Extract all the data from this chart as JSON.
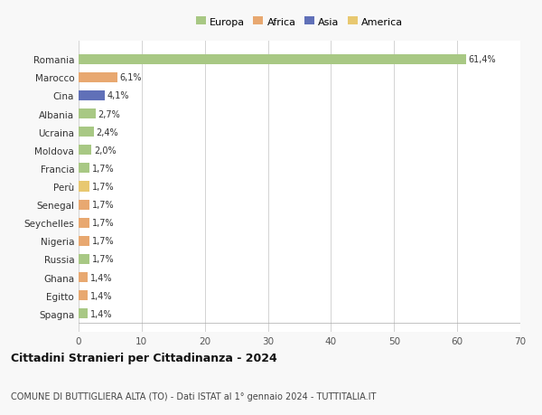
{
  "countries": [
    "Romania",
    "Marocco",
    "Cina",
    "Albania",
    "Ucraina",
    "Moldova",
    "Francia",
    "Perù",
    "Senegal",
    "Seychelles",
    "Nigeria",
    "Russia",
    "Ghana",
    "Egitto",
    "Spagna"
  ],
  "values": [
    61.4,
    6.1,
    4.1,
    2.7,
    2.4,
    2.0,
    1.7,
    1.7,
    1.7,
    1.7,
    1.7,
    1.7,
    1.4,
    1.4,
    1.4
  ],
  "labels": [
    "61,4%",
    "6,1%",
    "4,1%",
    "2,7%",
    "2,4%",
    "2,0%",
    "1,7%",
    "1,7%",
    "1,7%",
    "1,7%",
    "1,7%",
    "1,7%",
    "1,4%",
    "1,4%",
    "1,4%"
  ],
  "colors": [
    "#a8c884",
    "#e8a870",
    "#6070b8",
    "#a8c884",
    "#a8c884",
    "#a8c884",
    "#a8c884",
    "#e8c870",
    "#e8a870",
    "#e8a870",
    "#e8a870",
    "#a8c884",
    "#e8a870",
    "#e8a870",
    "#a8c884"
  ],
  "legend_labels": [
    "Europa",
    "Africa",
    "Asia",
    "America"
  ],
  "legend_colors": [
    "#a8c884",
    "#e8a870",
    "#6070b8",
    "#e8c870"
  ],
  "title": "Cittadini Stranieri per Cittadinanza - 2024",
  "subtitle": "COMUNE DI BUTTIGLIERA ALTA (TO) - Dati ISTAT al 1° gennaio 2024 - TUTTITALIA.IT",
  "xlim": [
    0,
    70
  ],
  "xticks": [
    0,
    10,
    20,
    30,
    40,
    50,
    60,
    70
  ],
  "bg_color": "#f8f8f8",
  "plot_bg_color": "#ffffff"
}
